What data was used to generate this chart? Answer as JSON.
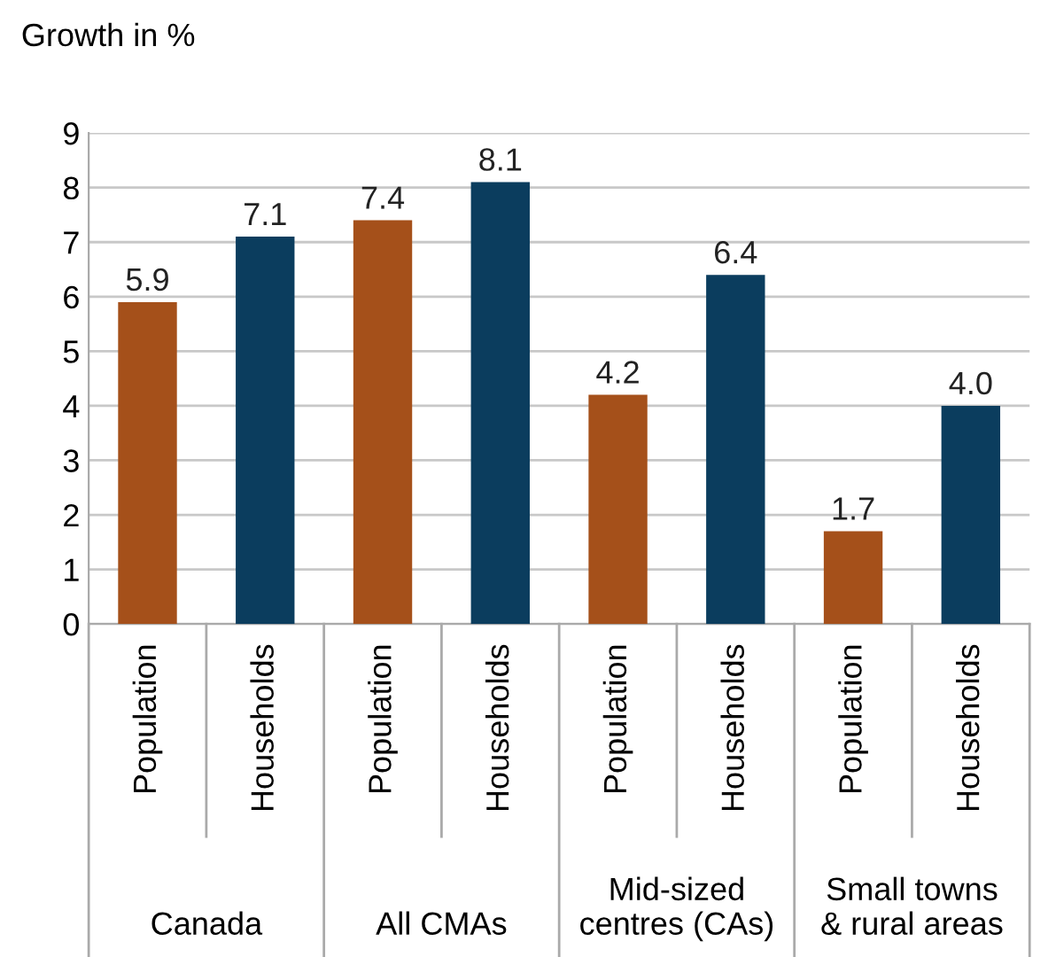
{
  "chart_data": {
    "type": "bar",
    "title": "Growth in %",
    "categories": [
      "Population",
      "Households",
      "Population",
      "Households",
      "Population",
      "Households",
      "Population",
      "Households"
    ],
    "values": [
      5.9,
      7.1,
      7.4,
      8.1,
      4.2,
      6.4,
      1.7,
      4.0
    ],
    "value_labels": [
      "5.9",
      "7.1",
      "7.4",
      "8.1",
      "4.2",
      "6.4",
      "1.7",
      "4.0"
    ],
    "colors": [
      "#a5501a",
      "#0b3d5e",
      "#a5501a",
      "#0b3d5e",
      "#a5501a",
      "#0b3d5e",
      "#a5501a",
      "#0b3d5e"
    ],
    "annotations": [
      "Canada",
      "All CMAs",
      "Mid-sized\ncentres (CAs)",
      "Small towns\n& rural areas"
    ],
    "ylim": [
      0,
      9
    ],
    "yticks": [
      0,
      1,
      2,
      3,
      4,
      5,
      6,
      7,
      8,
      9
    ],
    "grid": "y"
  }
}
